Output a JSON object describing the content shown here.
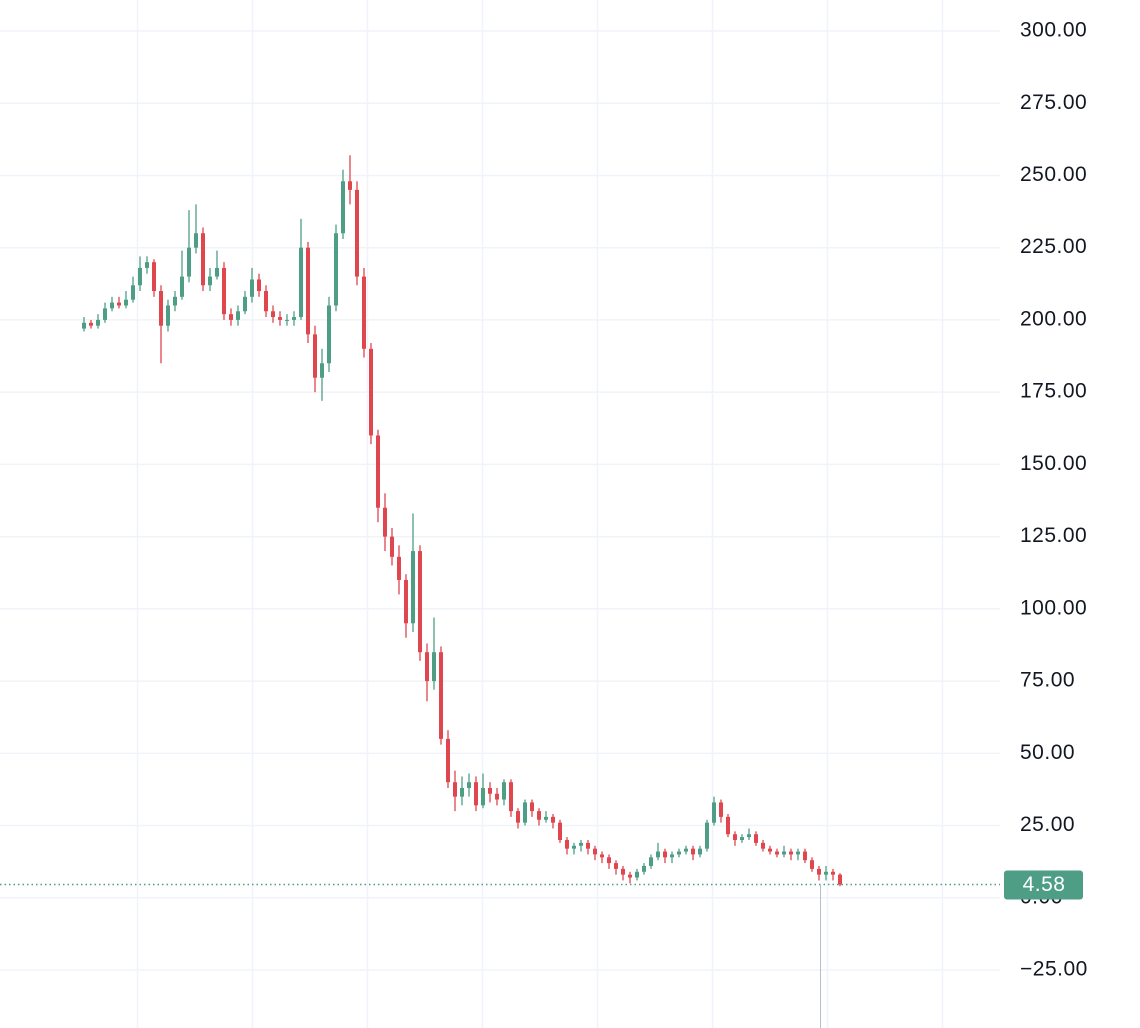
{
  "chart_data": {
    "type": "candlestick",
    "up_color": "#4e9e86",
    "down_color": "#e0464e",
    "grid": true,
    "ylim": [
      -45.07,
      310.73
    ],
    "yticks": [
      {
        "value": -25,
        "label": "−25.00"
      },
      {
        "value": 0,
        "label": "0.00"
      },
      {
        "value": 25,
        "label": "25.00"
      },
      {
        "value": 50,
        "label": "50.00"
      },
      {
        "value": 75,
        "label": "75.00"
      },
      {
        "value": 100,
        "label": "100.00"
      },
      {
        "value": 125,
        "label": "125.00"
      },
      {
        "value": 150,
        "label": "150.00"
      },
      {
        "value": 175,
        "label": "175.00"
      },
      {
        "value": 200,
        "label": "200.00"
      },
      {
        "value": 225,
        "label": "225.00"
      },
      {
        "value": 250,
        "label": "250.00"
      },
      {
        "value": 275,
        "label": "275.00"
      },
      {
        "value": 300,
        "label": "300.00"
      }
    ],
    "categories": [
      null,
      null,
      null,
      null,
      null,
      null,
      null,
      null,
      null,
      null,
      null,
      null,
      null,
      null,
      null,
      null,
      null,
      null,
      null,
      null,
      null,
      null,
      null,
      null,
      null,
      null,
      null,
      null,
      null,
      null,
      null,
      null,
      null,
      null,
      null,
      null,
      null,
      null,
      null,
      null,
      null,
      null,
      null,
      null,
      null,
      null,
      null,
      null,
      null,
      null,
      null,
      null,
      null,
      null,
      null,
      null,
      null,
      null,
      null,
      null,
      null,
      null,
      null,
      null,
      null,
      null,
      null,
      null,
      null,
      null,
      null,
      null,
      null,
      null,
      null,
      null,
      null,
      null,
      null,
      null,
      null,
      null,
      null,
      null,
      null,
      null,
      null,
      null,
      null,
      null,
      null,
      null,
      null,
      null,
      null,
      null,
      null,
      null,
      null,
      null,
      null,
      null,
      null,
      null,
      null,
      null,
      null,
      null,
      null
    ],
    "open": [
      197,
      199,
      198,
      200,
      204,
      206,
      205,
      207,
      212,
      218,
      220,
      210,
      198,
      205,
      208,
      215,
      225,
      230,
      212,
      215,
      218,
      202,
      200,
      203,
      208,
      214,
      210,
      203,
      201,
      200,
      200,
      201,
      225,
      195,
      180,
      185,
      205,
      230,
      248,
      245,
      215,
      190,
      160,
      135,
      125,
      118,
      110,
      95,
      120,
      85,
      75,
      85,
      55,
      40,
      35,
      38,
      40,
      32,
      38,
      36,
      34,
      40,
      30,
      26,
      33,
      30,
      27,
      28,
      26,
      20,
      17,
      18,
      19,
      17,
      15,
      14,
      12,
      10,
      8,
      7,
      9,
      11,
      14,
      16,
      14,
      15,
      16,
      17,
      15,
      17,
      26,
      33,
      28,
      22,
      20,
      21,
      22,
      19,
      17,
      16,
      15,
      16,
      15,
      16,
      13,
      10,
      8,
      9,
      8
    ],
    "high": [
      201,
      200,
      202,
      206,
      208,
      208,
      210,
      215,
      222,
      222,
      221,
      212,
      207,
      210,
      224,
      238,
      240,
      232,
      218,
      224,
      220,
      204,
      205,
      210,
      218,
      216,
      212,
      205,
      203,
      202,
      203,
      235,
      227,
      198,
      190,
      208,
      233,
      252,
      257,
      248,
      218,
      192,
      162,
      140,
      128,
      122,
      112,
      133,
      122,
      88,
      97,
      87,
      58,
      44,
      42,
      43,
      42,
      43,
      40,
      38,
      41,
      41,
      31,
      34,
      34,
      31,
      30,
      29,
      27,
      21,
      19,
      20,
      20,
      18,
      16,
      15,
      13,
      11,
      9,
      10,
      12,
      15,
      19,
      17,
      16,
      17,
      18,
      18,
      18,
      27,
      35,
      34,
      29,
      23,
      22,
      24,
      23,
      20,
      18,
      17,
      18,
      17,
      17,
      17,
      14,
      11,
      11,
      10,
      8.5
    ],
    "low": [
      196,
      197,
      197,
      199,
      203,
      204,
      204,
      206,
      210,
      216,
      208,
      185,
      196,
      203,
      207,
      213,
      223,
      210,
      210,
      214,
      200,
      198,
      198,
      202,
      206,
      208,
      201,
      199,
      198,
      198,
      198,
      200,
      192,
      175,
      172,
      182,
      203,
      228,
      240,
      212,
      187,
      157,
      130,
      120,
      115,
      105,
      90,
      92,
      82,
      68,
      72,
      53,
      38,
      30,
      32,
      35,
      30,
      31,
      33,
      32,
      32,
      28,
      24,
      25,
      28,
      25,
      26,
      24,
      19,
      15,
      15,
      16,
      15,
      13,
      12,
      10,
      8,
      6,
      5,
      6,
      8,
      10,
      13,
      12,
      12,
      14,
      15,
      13,
      14,
      16,
      25,
      26,
      21,
      18,
      19,
      20,
      18,
      16,
      15,
      14,
      14,
      13,
      13,
      12,
      9,
      6,
      6,
      6,
      4
    ],
    "close": [
      199,
      198,
      200,
      204,
      206,
      205,
      207,
      212,
      218,
      220,
      210,
      198,
      205,
      208,
      215,
      225,
      230,
      212,
      215,
      218,
      202,
      200,
      203,
      208,
      214,
      210,
      203,
      201,
      200,
      200,
      201,
      225,
      195,
      180,
      185,
      205,
      230,
      248,
      245,
      215,
      190,
      160,
      135,
      125,
      118,
      110,
      95,
      120,
      85,
      75,
      85,
      55,
      40,
      35,
      38,
      40,
      32,
      38,
      36,
      34,
      40,
      30,
      26,
      33,
      30,
      27,
      28,
      26,
      20,
      17,
      18,
      19,
      17,
      15,
      14,
      12,
      10,
      8,
      7,
      9,
      11,
      14,
      16,
      14,
      15,
      16,
      17,
      15,
      17,
      26,
      33,
      28,
      22,
      20,
      21,
      22,
      19,
      17,
      16,
      15,
      16,
      15,
      16,
      13,
      10,
      8,
      9,
      8,
      4.58
    ]
  }
}
